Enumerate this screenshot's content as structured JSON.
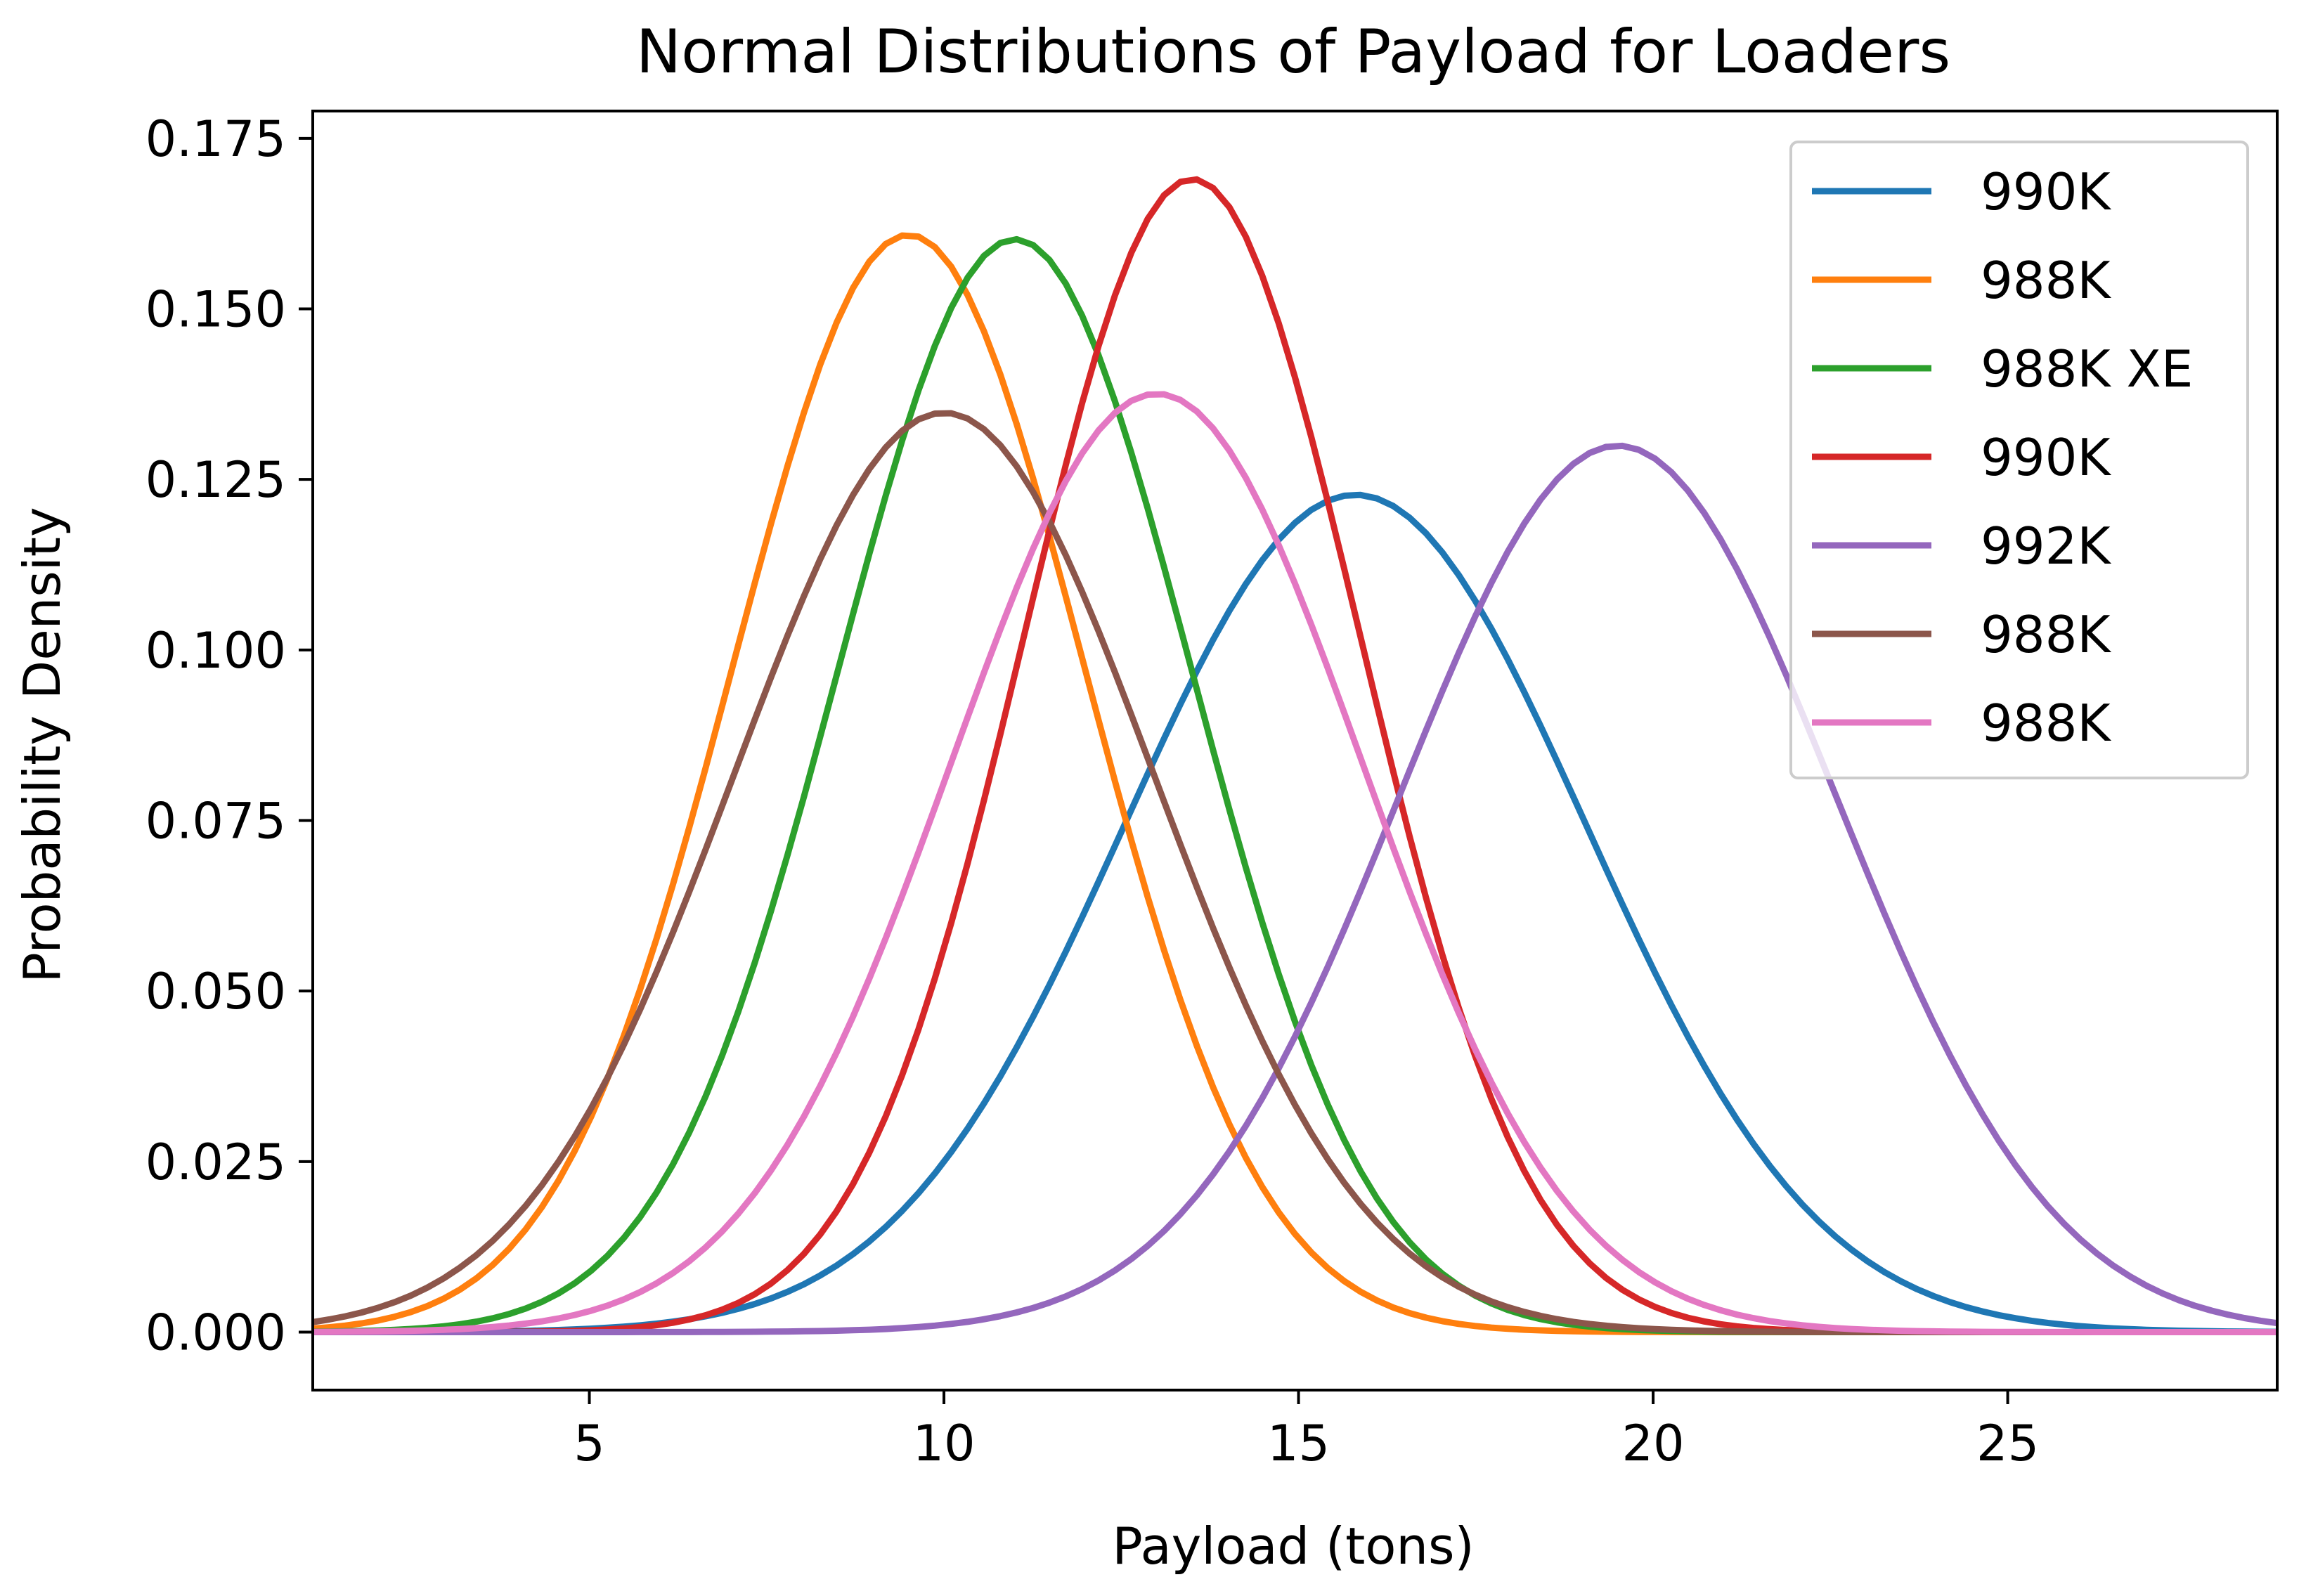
{
  "chart_data": {
    "type": "line",
    "title": "Normal Distributions of Payload for Loaders",
    "xlabel": "Payload (tons)",
    "ylabel": "Probability Density",
    "xlim": [
      1.1,
      28.8
    ],
    "ylim": [
      -0.0085,
      0.179
    ],
    "x_range": [
      1.1,
      28.8
    ],
    "x_ticks": [
      5,
      10,
      15,
      20,
      25
    ],
    "x_tick_labels": [
      "5",
      "10",
      "15",
      "20",
      "25"
    ],
    "y_ticks": [
      0.0,
      0.025,
      0.05,
      0.075,
      0.1,
      0.125,
      0.15,
      0.175
    ],
    "y_tick_labels": [
      "0.000",
      "0.025",
      "0.050",
      "0.075",
      "0.100",
      "0.125",
      "0.150",
      "0.175"
    ],
    "grid": false,
    "legend_position": "upper right",
    "series": [
      {
        "name": "990K",
        "color": "#1f77b4",
        "mean": 15.8,
        "std": 3.25
      },
      {
        "name": "988K",
        "color": "#ff7f0e",
        "mean": 9.5,
        "std": 2.48
      },
      {
        "name": "988K XE",
        "color": "#2ca02c",
        "mean": 11.0,
        "std": 2.49
      },
      {
        "name": "990K",
        "color": "#d62728",
        "mean": 13.5,
        "std": 2.36
      },
      {
        "name": "992K",
        "color": "#9467bd",
        "mean": 19.5,
        "std": 3.07
      },
      {
        "name": "988K",
        "color": "#8c564b",
        "mean": 10.0,
        "std": 2.96
      },
      {
        "name": "988K",
        "color": "#e377c2",
        "mean": 13.0,
        "std": 2.9
      }
    ]
  }
}
